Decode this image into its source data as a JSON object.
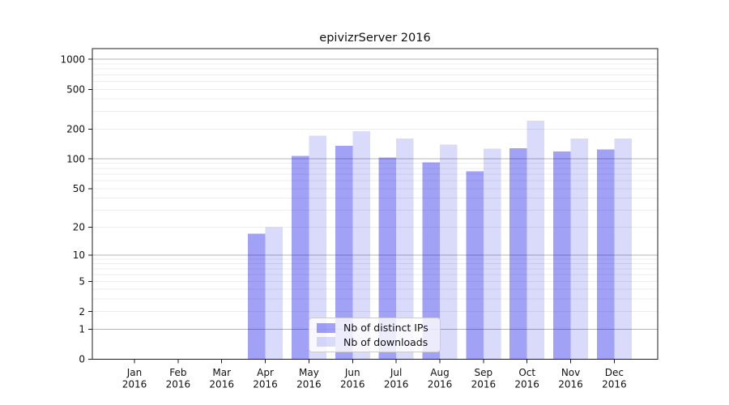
{
  "chart_data": {
    "type": "bar",
    "title": "epivizrServer 2016",
    "x_months": [
      "Jan",
      "Feb",
      "Mar",
      "Apr",
      "May",
      "Jun",
      "Jul",
      "Aug",
      "Sep",
      "Oct",
      "Nov",
      "Dec"
    ],
    "x_year": "2016",
    "series": [
      {
        "name": "Nb of distinct IPs",
        "color": "rgba(0,0,230,0.37)",
        "values": [
          0,
          0,
          0,
          17,
          107,
          135,
          103,
          92,
          75,
          128,
          119,
          124
        ]
      },
      {
        "name": "Nb of downloads",
        "color": "rgba(0,0,230,0.145)",
        "values": [
          0,
          0,
          0,
          20,
          171,
          190,
          161,
          139,
          127,
          243,
          160,
          160
        ]
      }
    ],
    "y_scale": "log10(1+x)",
    "y_ticks": [
      0,
      1,
      2,
      5,
      10,
      20,
      50,
      100,
      200,
      500,
      1000
    ],
    "y_max": 1280,
    "grid": {
      "major_lines": [
        1,
        10,
        100,
        1000
      ],
      "major_color": "#b4b4b4",
      "minor_color": "#ececec"
    },
    "axis_color": "#1c1c1c",
    "legend_position": "inside-bottom-center"
  }
}
